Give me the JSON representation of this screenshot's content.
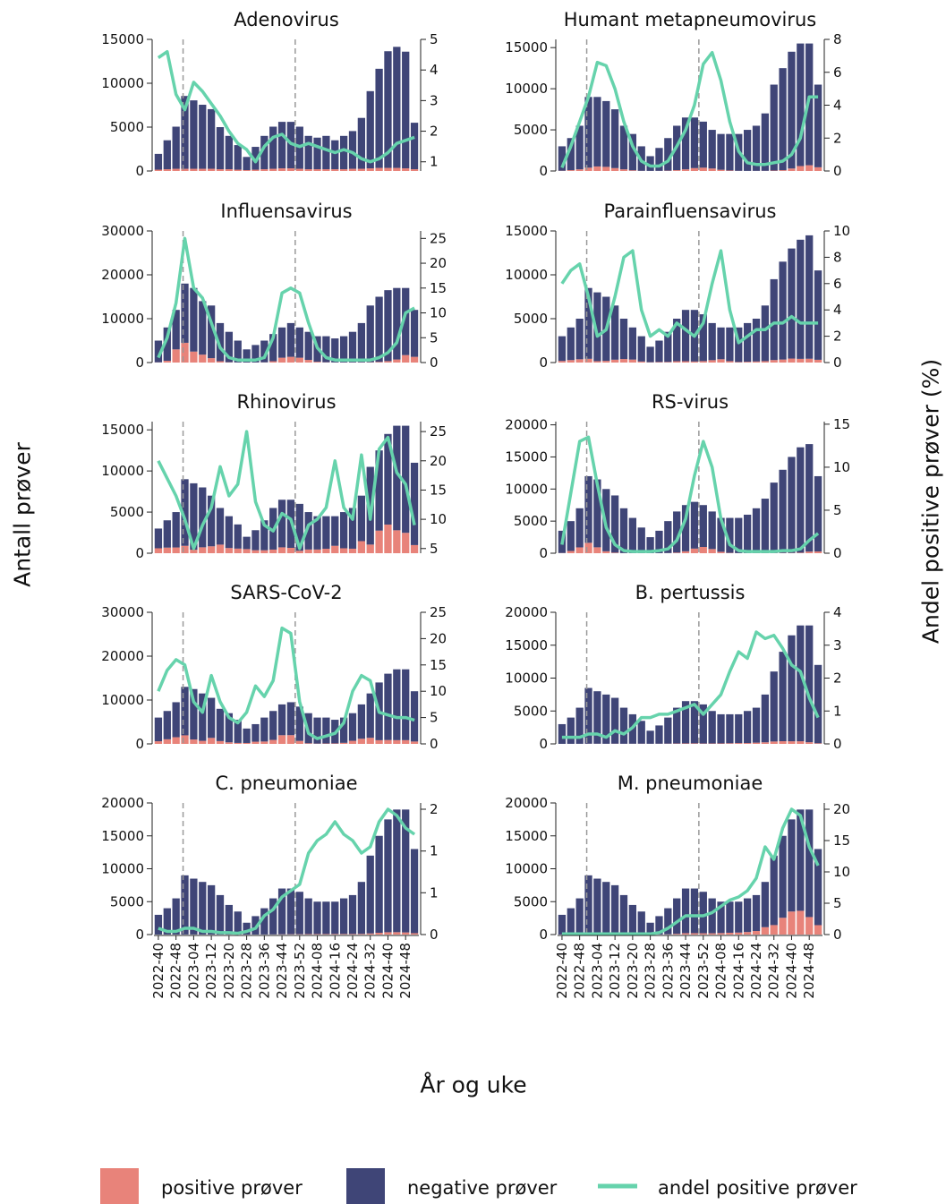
{
  "y_label": "Antall prøver",
  "y2_label": "Andel positive prøver (%)",
  "x_label": "År og uke",
  "legend": [
    {
      "name": "positive prøver",
      "color": "#e8837a"
    },
    {
      "name": "negative prøver",
      "color": "#3f4577"
    },
    {
      "name": "andel positive prøver",
      "color": "#66d3ac"
    }
  ],
  "categories": [
    "2022-40",
    null,
    "2022-48",
    null,
    "2023-04",
    null,
    "2023-12",
    null,
    "2023-20",
    null,
    "2023-28",
    null,
    "2023-36",
    null,
    "2023-44",
    null,
    "2023-52",
    null,
    "2024-08",
    null,
    "2024-16",
    null,
    "2024-24",
    null,
    "2024-32",
    null,
    "2024-40",
    null,
    "2024-48",
    null
  ],
  "chart_data": [
    {
      "type": "bar-line",
      "title": "Adenovirus",
      "ylim": [
        0,
        15000
      ],
      "yticks": [
        0,
        5000,
        10000,
        15000
      ],
      "y2lim": [
        0.7,
        5
      ],
      "y2ticks": [
        1,
        2,
        3,
        4,
        5
      ],
      "positive": [
        150,
        200,
        250,
        250,
        250,
        250,
        250,
        200,
        200,
        150,
        100,
        150,
        200,
        250,
        300,
        300,
        250,
        200,
        200,
        200,
        200,
        200,
        250,
        250,
        300,
        350,
        350,
        350,
        300,
        200
      ],
      "negative": [
        1800,
        3300,
        4800,
        8300,
        7800,
        7300,
        6800,
        4800,
        3800,
        2800,
        1500,
        2600,
        3800,
        4800,
        5300,
        5300,
        4800,
        3800,
        3600,
        3800,
        3300,
        3800,
        4300,
        5800,
        8800,
        11300,
        13300,
        13800,
        13300,
        5300
      ],
      "share": [
        4.4,
        4.6,
        3.2,
        2.7,
        3.6,
        3.3,
        2.9,
        2.5,
        2.0,
        1.6,
        1.4,
        1.0,
        1.5,
        1.8,
        1.9,
        1.6,
        1.5,
        1.6,
        1.5,
        1.4,
        1.3,
        1.4,
        1.3,
        1.1,
        1.0,
        1.1,
        1.3,
        1.6,
        1.7,
        1.8
      ]
    },
    {
      "type": "bar-line",
      "title": "Humant metapneumovirus",
      "ylim": [
        0,
        16000
      ],
      "yticks": [
        0,
        5000,
        10000,
        15000
      ],
      "y2lim": [
        0,
        8
      ],
      "y2ticks": [
        0,
        2,
        4,
        6,
        8
      ],
      "positive": [
        30,
        100,
        200,
        400,
        550,
        500,
        350,
        200,
        80,
        20,
        10,
        15,
        40,
        100,
        200,
        350,
        400,
        300,
        150,
        60,
        20,
        10,
        15,
        20,
        50,
        100,
        300,
        600,
        700,
        450
      ],
      "negative": [
        2970,
        3900,
        5300,
        8600,
        8450,
        8000,
        7150,
        5300,
        4420,
        2980,
        1790,
        2785,
        3960,
        5400,
        6300,
        6150,
        5600,
        4700,
        4350,
        4440,
        4480,
        4990,
        5485,
        6980,
        10450,
        12400,
        14200,
        14900,
        14800,
        10050
      ],
      "share": [
        0.2,
        1.5,
        3,
        4.5,
        6.6,
        6.4,
        5,
        3,
        1.5,
        0.6,
        0.3,
        0.3,
        0.6,
        1.5,
        2.5,
        4,
        6.5,
        7.2,
        5.5,
        3,
        1.2,
        0.5,
        0.4,
        0.4,
        0.5,
        0.6,
        1,
        2,
        4.5,
        4.5
      ]
    },
    {
      "type": "bar-line",
      "title": "Influensavirus",
      "ylim": [
        0,
        30000
      ],
      "yticks": [
        0,
        10000,
        20000,
        30000
      ],
      "y2lim": [
        0,
        26.5
      ],
      "y2ticks": [
        0,
        5,
        10,
        15,
        20,
        25
      ],
      "positive": [
        50,
        400,
        3000,
        4500,
        2500,
        1800,
        1000,
        300,
        70,
        25,
        15,
        20,
        50,
        300,
        1100,
        1300,
        1100,
        600,
        180,
        60,
        30,
        30,
        35,
        45,
        65,
        150,
        330,
        700,
        1700,
        1300
      ],
      "negative": [
        4950,
        7600,
        9000,
        13500,
        14500,
        12200,
        12000,
        8700,
        6930,
        4975,
        2985,
        3980,
        4950,
        6200,
        6900,
        7700,
        6900,
        6400,
        5820,
        5940,
        5470,
        5970,
        6965,
        8955,
        12935,
        14850,
        16170,
        16300,
        15300,
        10700
      ],
      "share": [
        1,
        5,
        12,
        25,
        15,
        13,
        8,
        3,
        1,
        0.5,
        0.5,
        0.5,
        1,
        5,
        14,
        15,
        14,
        8,
        3,
        1,
        0.5,
        0.5,
        0.5,
        0.5,
        0.5,
        1,
        2,
        4,
        10,
        11
      ]
    },
    {
      "type": "bar-line",
      "title": "Parainfluensavirus",
      "ylim": [
        0,
        15000
      ],
      "yticks": [
        0,
        5000,
        10000,
        15000
      ],
      "y2lim": [
        0,
        10
      ],
      "y2ticks": [
        0,
        2,
        4,
        6,
        8,
        10
      ],
      "positive": [
        180,
        280,
        375,
        425,
        160,
        190,
        325,
        400,
        340,
        120,
        36,
        62,
        70,
        150,
        150,
        120,
        165,
        270,
        380,
        160,
        60,
        90,
        125,
        160,
        285,
        345,
        455,
        420,
        435,
        315
      ],
      "negative": [
        2820,
        3720,
        4625,
        8075,
        7840,
        7310,
        6175,
        4600,
        3660,
        2880,
        1764,
        2438,
        3430,
        4850,
        5850,
        5880,
        5335,
        4230,
        3620,
        3840,
        3940,
        4410,
        4875,
        6340,
        9215,
        11155,
        12545,
        13580,
        14065,
        10185
      ],
      "share": [
        6,
        7,
        7.5,
        5,
        2,
        2.5,
        5,
        8,
        8.5,
        4,
        2,
        2.5,
        2,
        3,
        2.5,
        2,
        3,
        6,
        8.5,
        4,
        1.5,
        2,
        2.5,
        2.5,
        3,
        3,
        3.5,
        3,
        3,
        3
      ]
    },
    {
      "type": "bar-line",
      "title": "Rhinovirus",
      "ylim": [
        0,
        16000
      ],
      "yticks": [
        0,
        5000,
        10000,
        15000
      ],
      "y2lim": [
        4.2,
        26.7
      ],
      "y2ticks": [
        5,
        10,
        15,
        20,
        25
      ],
      "positive": [
        600,
        680,
        700,
        900,
        425,
        720,
        840,
        1045,
        630,
        560,
        500,
        364,
        360,
        440,
        715,
        650,
        300,
        450,
        450,
        540,
        900,
        600,
        550,
        1470,
        1050,
        2750,
        3480,
        2790,
        2480,
        990
      ],
      "negative": [
        2400,
        3320,
        4300,
        8100,
        8075,
        7280,
        6160,
        4455,
        3870,
        2940,
        1500,
        2436,
        3640,
        5060,
        5785,
        5850,
        5700,
        4550,
        4050,
        3960,
        3600,
        4400,
        4950,
        5530,
        9450,
        9750,
        11020,
        12710,
        13020,
        10010
      ],
      "share": [
        20,
        17,
        14,
        10,
        5,
        9,
        12,
        19,
        14,
        16,
        25,
        13,
        9,
        8,
        11,
        10,
        5,
        9,
        10,
        12,
        20,
        12,
        10,
        21,
        10,
        22,
        24,
        18,
        16,
        9
      ]
    },
    {
      "type": "bar-line",
      "title": "RS-virus",
      "ylim": [
        0,
        20500
      ],
      "yticks": [
        0,
        5000,
        10000,
        15000,
        20000
      ],
      "y2lim": [
        0,
        15.3
      ],
      "y2ticks": [
        0,
        5,
        10,
        15
      ],
      "positive": [
        35,
        350,
        910,
        1620,
        920,
        300,
        90,
        21,
        11,
        8,
        5,
        10,
        25,
        100,
        300,
        720,
        975,
        650,
        220,
        55,
        16,
        12,
        14,
        17,
        22,
        39,
        45,
        83,
        255,
        276
      ],
      "negative": [
        3465,
        4650,
        6090,
        10380,
        10580,
        9700,
        8910,
        6979,
        5489,
        3992,
        2495,
        3490,
        4975,
        6400,
        7200,
        7280,
        6525,
        5850,
        5280,
        5445,
        5484,
        5988,
        6986,
        8483,
        10978,
        12961,
        14955,
        16417,
        16745,
        11724
      ],
      "share": [
        1,
        7,
        13,
        13.5,
        8,
        3,
        1,
        0.3,
        0.2,
        0.2,
        0.2,
        0.3,
        0.5,
        1.5,
        4,
        9,
        13,
        10,
        4,
        1,
        0.3,
        0.2,
        0.2,
        0.2,
        0.2,
        0.3,
        0.3,
        0.5,
        1.5,
        2.3
      ]
    },
    {
      "type": "bar-line",
      "title": "SARS-CoV-2",
      "ylim": [
        0,
        30000
      ],
      "yticks": [
        0,
        10000,
        20000,
        30000
      ],
      "y2lim": [
        0,
        25
      ],
      "y2ticks": [
        0,
        5,
        10,
        15,
        20,
        25
      ],
      "positive": [
        600,
        1050,
        1520,
        1950,
        1000,
        690,
        1365,
        640,
        350,
        220,
        210,
        495,
        540,
        900,
        1980,
        1995,
        680,
        140,
        60,
        90,
        110,
        240,
        700,
        1170,
        1380,
        840,
        880,
        850,
        850,
        540
      ],
      "negative": [
        5400,
        6450,
        7980,
        11050,
        11500,
        10810,
        9135,
        7360,
        6650,
        5280,
        3290,
        4005,
        5460,
        6600,
        7020,
        7505,
        7820,
        6860,
        5940,
        5910,
        5390,
        5760,
        6300,
        7830,
        10120,
        13160,
        15120,
        16150,
        16150,
        11460
      ],
      "share": [
        10,
        14,
        16,
        15,
        8,
        6,
        13,
        8,
        5,
        4,
        6,
        11,
        9,
        12,
        22,
        21,
        8,
        2,
        1,
        1.5,
        2,
        4,
        10,
        13,
        12,
        6,
        5.5,
        5,
        5,
        4.5
      ]
    },
    {
      "type": "bar-line",
      "title": "B. pertussis",
      "ylim": [
        0,
        20000
      ],
      "yticks": [
        0,
        5000,
        10000,
        15000,
        20000
      ],
      "y2lim": [
        0,
        4
      ],
      "y2ticks": [
        0,
        1,
        2,
        3,
        4
      ],
      "positive": [
        6,
        8,
        11,
        26,
        24,
        15,
        28,
        17,
        23,
        28,
        16,
        25,
        36,
        55,
        72,
        78,
        54,
        60,
        68,
        99,
        126,
        130,
        187,
        240,
        363,
        406,
        396,
        396,
        252,
        96
      ],
      "negative": [
        2994,
        3992,
        5489,
        8474,
        7976,
        7485,
        6972,
        5483,
        4477,
        3472,
        1984,
        2775,
        3964,
        5445,
        6428,
        6422,
        5946,
        4940,
        4432,
        4401,
        4374,
        4870,
        5313,
        7260,
        10637,
        13594,
        16104,
        17604,
        17748,
        11904
      ],
      "share": [
        0.2,
        0.2,
        0.2,
        0.3,
        0.3,
        0.2,
        0.4,
        0.3,
        0.5,
        0.8,
        0.8,
        0.9,
        0.9,
        1,
        1.1,
        1.2,
        0.9,
        1.2,
        1.5,
        2.2,
        2.8,
        2.6,
        3.4,
        3.2,
        3.3,
        2.9,
        2.4,
        2.2,
        1.4,
        0.8
      ]
    },
    {
      "type": "bar-line",
      "title": "C. pneumoniae",
      "ylim": [
        0,
        20000
      ],
      "yticks": [
        0,
        5000,
        10000,
        15000,
        20000
      ],
      "y2lim": [
        0,
        2.1
      ],
      "y2ticks": [
        0,
        {
          "value": 0.667,
          "label": "1"
        },
        {
          "value": 1.333,
          "label": "1"
        },
        2
      ],
      "positive": [
        3,
        2,
        3,
        9,
        9,
        4,
        4,
        2,
        1,
        1,
        1,
        3,
        12,
        22,
        42,
        49,
        52,
        72,
        75,
        80,
        90,
        88,
        90,
        104,
        168,
        270,
        350,
        361,
        323,
        208
      ],
      "negative": [
        2997,
        3998,
        5497,
        8991,
        8491,
        7996,
        7496,
        5998,
        4499,
        3499,
        1799,
        2797,
        3988,
        5478,
        6958,
        6951,
        6448,
        5428,
        4925,
        4920,
        4910,
        5412,
        5910,
        7896,
        11832,
        14730,
        17150,
        18639,
        18677,
        12792
      ],
      "share": [
        0.1,
        0.05,
        0.05,
        0.1,
        0.1,
        0.05,
        0.05,
        0.03,
        0.03,
        0.02,
        0.05,
        0.1,
        0.3,
        0.4,
        0.6,
        0.7,
        0.8,
        1.3,
        1.5,
        1.6,
        1.8,
        1.6,
        1.5,
        1.3,
        1.4,
        1.8,
        2.0,
        1.9,
        1.7,
        1.6
      ]
    },
    {
      "type": "bar-line",
      "title": "M. pneumoniae",
      "ylim": [
        0,
        20000
      ],
      "yticks": [
        0,
        5000,
        10000,
        15000,
        20000
      ],
      "y2lim": [
        0,
        21
      ],
      "y2ticks": [
        0,
        5,
        10,
        15,
        20
      ],
      "positive": [
        3,
        4,
        6,
        9,
        9,
        8,
        8,
        6,
        5,
        4,
        2,
        8,
        40,
        110,
        210,
        210,
        195,
        193,
        225,
        275,
        300,
        385,
        540,
        1120,
        1440,
        2550,
        3500,
        3610,
        2660,
        1430
      ],
      "negative": [
        2997,
        3996,
        5494,
        8991,
        8491,
        7992,
        7492,
        5994,
        4495,
        3496,
        1798,
        2792,
        3960,
        5390,
        6790,
        6790,
        6305,
        5307,
        4775,
        4725,
        4700,
        5115,
        5460,
        6880,
        10560,
        12450,
        14000,
        15390,
        16340,
        11570
      ],
      "share": [
        0.1,
        0.1,
        0.1,
        0.1,
        0.1,
        0.1,
        0.1,
        0.1,
        0.1,
        0.1,
        0.1,
        0.3,
        1,
        2,
        3,
        3,
        3,
        3.5,
        4.5,
        5.5,
        6,
        7,
        9,
        14,
        12,
        17,
        20,
        19,
        14,
        11
      ]
    }
  ]
}
